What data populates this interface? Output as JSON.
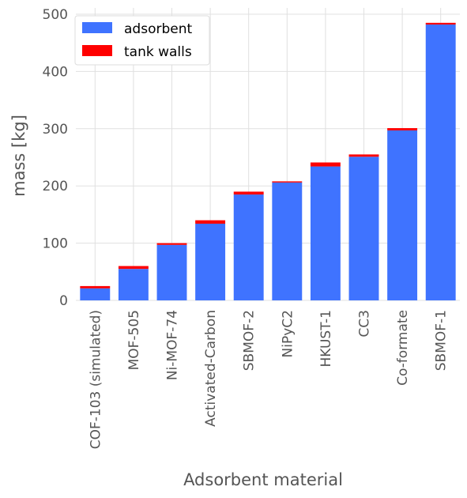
{
  "chart_data": {
    "type": "bar",
    "stacked": true,
    "xlabel": "Adsorbent material",
    "ylabel": "mass [kg]",
    "ylim": [
      0,
      500
    ],
    "yticks": [
      0,
      100,
      200,
      300,
      400,
      500
    ],
    "grid": true,
    "legend_position": "top-left",
    "categories": [
      "COF-103 (simulated)",
      "MOF-505",
      "Ni-MOF-74",
      "Activated-Carbon",
      "SBMOF-2",
      "NiPyC2",
      "HKUST-1",
      "CC3",
      "Co-formate",
      "SBMOF-1"
    ],
    "series": [
      {
        "name": "adsorbent",
        "color": "#3f73ff",
        "values": [
          21,
          55,
          97,
          134,
          185,
          206,
          234,
          251,
          297,
          482
        ]
      },
      {
        "name": "tank walls",
        "color": "#ff0000",
        "values": [
          4,
          5,
          3,
          6,
          5,
          2,
          7,
          4,
          4,
          3
        ]
      }
    ]
  }
}
